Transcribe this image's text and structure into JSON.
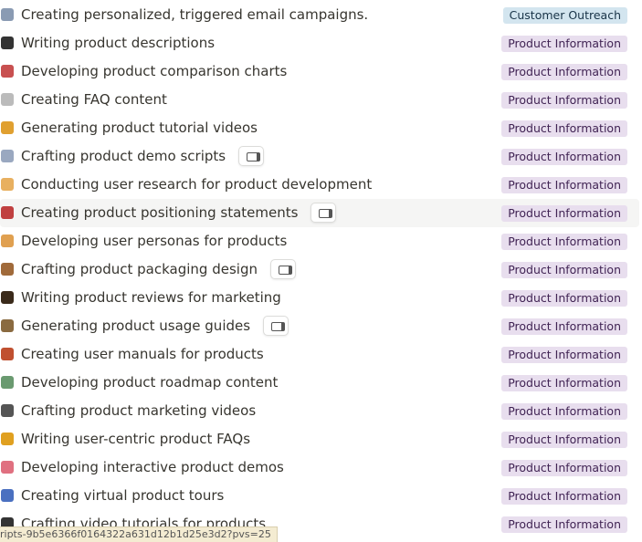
{
  "rows": [
    {
      "title": "Creating personalized, triggered email campaigns.",
      "tag": "Customer Outreach"
    },
    {
      "title": "Writing product descriptions",
      "tag": "Product Information"
    },
    {
      "title": "Developing product comparison charts",
      "tag": "Product Information"
    },
    {
      "title": "Creating FAQ content",
      "tag": "Product Information"
    },
    {
      "title": "Generating product tutorial videos",
      "tag": "Product Information"
    },
    {
      "title": "Crafting product demo scripts",
      "tag": "Product Information"
    },
    {
      "title": "Conducting user research for product development",
      "tag": "Product Information"
    },
    {
      "title": "Creating product positioning statements",
      "tag": "Product Information"
    },
    {
      "title": "Developing user personas for products",
      "tag": "Product Information"
    },
    {
      "title": "Crafting product packaging design",
      "tag": "Product Information"
    },
    {
      "title": "Writing product reviews for marketing",
      "tag": "Product Information"
    },
    {
      "title": "Generating product usage guides",
      "tag": "Product Information"
    },
    {
      "title": "Creating user manuals for products",
      "tag": "Product Information"
    },
    {
      "title": "Developing product roadmap content",
      "tag": "Product Information"
    },
    {
      "title": "Crafting product marketing videos",
      "tag": "Product Information"
    },
    {
      "title": "Writing user-centric product FAQs",
      "tag": "Product Information"
    },
    {
      "title": "Developing interactive product demos",
      "tag": "Product Information"
    },
    {
      "title": "Creating virtual product tours",
      "tag": "Product Information"
    },
    {
      "title": "Crafting video tutorials for products",
      "tag": "Product Information"
    }
  ],
  "status_url": "ripts-9b5e6366f0164322a631d12b1d25e3d2?pvs=25"
}
